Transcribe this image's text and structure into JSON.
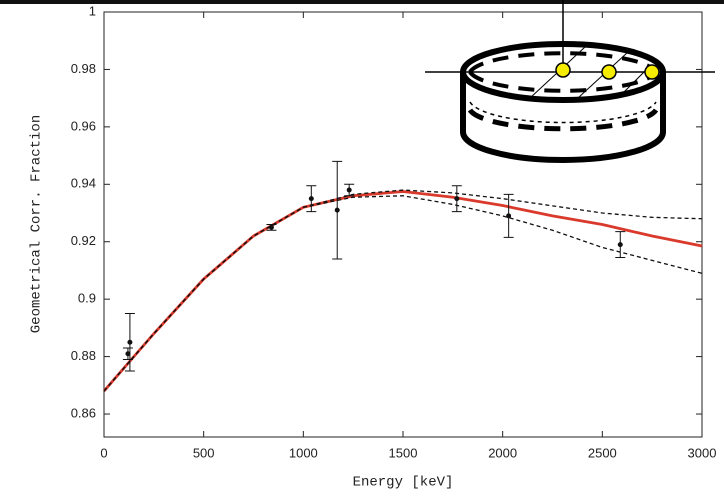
{
  "chart_data": {
    "type": "scatter",
    "xlabel": "Energy [keV]",
    "ylabel": "Geometrical Corr. Fraction",
    "xlim": [
      0,
      3000
    ],
    "ylim": [
      0.852,
      1
    ],
    "xticks": [
      0,
      500,
      1000,
      1500,
      2000,
      2500,
      3000
    ],
    "yticks": [
      0.86,
      0.88,
      0.9,
      0.92,
      0.94,
      0.96,
      0.98,
      1
    ],
    "points": {
      "color": "#111111",
      "x": [
        120,
        130,
        840,
        1040,
        1170,
        1230,
        1770,
        2030,
        2590
      ],
      "y": [
        0.881,
        0.885,
        0.925,
        0.935,
        0.931,
        0.938,
        0.935,
        0.929,
        0.919
      ],
      "err": [
        0.002,
        0.01,
        0.001,
        0.0045,
        0.017,
        0.002,
        0.0045,
        0.0075,
        0.0045
      ]
    },
    "curves": {
      "x": [
        0,
        250,
        500,
        750,
        1000,
        1250,
        1500,
        1750,
        2000,
        2250,
        2500,
        2750,
        3000
      ],
      "series": [
        {
          "color": "#d93a2b",
          "dash": false,
          "values": [
            0.868,
            0.888,
            0.907,
            0.922,
            0.932,
            0.936,
            0.9375,
            0.9355,
            0.9326,
            0.929,
            0.926,
            0.922,
            0.9185
          ]
        },
        {
          "color": "#111111",
          "dash": true,
          "values": [
            0.868,
            0.888,
            0.907,
            0.922,
            0.932,
            0.9365,
            0.938,
            0.937,
            0.935,
            0.9325,
            0.93,
            0.9285,
            0.928
          ]
        },
        {
          "color": "#111111",
          "dash": true,
          "values": [
            0.868,
            0.888,
            0.907,
            0.922,
            0.932,
            0.9355,
            0.936,
            0.933,
            0.929,
            0.924,
            0.918,
            0.9135,
            0.909
          ]
        }
      ]
    }
  }
}
